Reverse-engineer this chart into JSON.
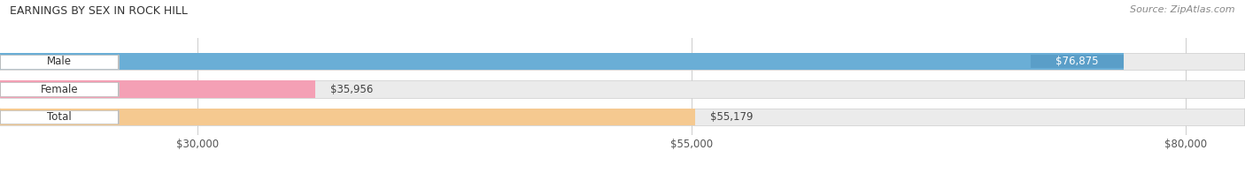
{
  "title": "EARNINGS BY SEX IN ROCK HILL",
  "source": "Source: ZipAtlas.com",
  "categories": [
    "Male",
    "Female",
    "Total"
  ],
  "values": [
    76875,
    35956,
    55179
  ],
  "bar_colors": [
    "#6aaed6",
    "#f4a0b5",
    "#f5c990"
  ],
  "bar_bg_color": "#ebebeb",
  "value_labels": [
    "$76,875",
    "$35,956",
    "$55,179"
  ],
  "xmin": 20000,
  "xmax": 83000,
  "xticks": [
    30000,
    55000,
    80000
  ],
  "xtick_labels": [
    "$30,000",
    "$55,000",
    "$80,000"
  ],
  "title_fontsize": 9,
  "bar_label_fontsize": 8.5,
  "value_fontsize": 8.5,
  "source_fontsize": 8,
  "figsize": [
    14.06,
    1.96
  ],
  "dpi": 100
}
